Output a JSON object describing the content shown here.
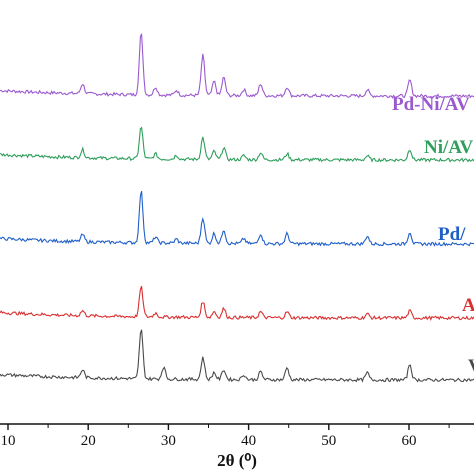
{
  "chart_data": {
    "type": "line",
    "title": "",
    "xlabel": "2θ (⁰)",
    "ylabel": "",
    "xlim": [
      8,
      68
    ],
    "x_ticks": [
      10,
      20,
      30,
      40,
      50,
      60
    ],
    "grid": false,
    "series": [
      {
        "name": "Pd-Ni/AV",
        "color": "#9b59d0",
        "label_visible": "Pd-Ni/AV",
        "baseline": 0.0,
        "peaks": [
          [
            19.3,
            10
          ],
          [
            26.6,
            62
          ],
          [
            28.4,
            8
          ],
          [
            31.0,
            5
          ],
          [
            34.3,
            40
          ],
          [
            35.7,
            14
          ],
          [
            36.9,
            18
          ],
          [
            39.4,
            6
          ],
          [
            41.5,
            12
          ],
          [
            44.8,
            9
          ],
          [
            54.8,
            6
          ],
          [
            60.1,
            16
          ]
        ]
      },
      {
        "name": "Ni/AV",
        "color": "#2e9e5b",
        "label_visible": "Ni/AV",
        "baseline": 0.0,
        "peaks": [
          [
            19.3,
            8
          ],
          [
            26.6,
            32
          ],
          [
            28.4,
            5
          ],
          [
            31.0,
            4
          ],
          [
            34.3,
            22
          ],
          [
            35.7,
            8
          ],
          [
            36.9,
            12
          ],
          [
            39.4,
            4
          ],
          [
            41.5,
            7
          ],
          [
            44.8,
            6
          ],
          [
            54.8,
            4
          ],
          [
            60.1,
            11
          ]
        ]
      },
      {
        "name": "Pd/AV",
        "color": "#1f5fc8",
        "label_visible": "Pd/",
        "baseline": 0.0,
        "peaks": [
          [
            19.3,
            7
          ],
          [
            26.6,
            52
          ],
          [
            28.4,
            6
          ],
          [
            31.0,
            4
          ],
          [
            34.3,
            26
          ],
          [
            35.7,
            10
          ],
          [
            36.9,
            14
          ],
          [
            39.4,
            5
          ],
          [
            41.5,
            10
          ],
          [
            44.8,
            10
          ],
          [
            54.8,
            8
          ],
          [
            60.1,
            12
          ]
        ]
      },
      {
        "name": "AV",
        "color": "#d93030",
        "label_visible": "A",
        "baseline": 0.0,
        "peaks": [
          [
            19.3,
            5
          ],
          [
            26.6,
            30
          ],
          [
            28.4,
            4
          ],
          [
            34.3,
            16
          ],
          [
            35.7,
            6
          ],
          [
            36.9,
            9
          ],
          [
            41.5,
            6
          ],
          [
            44.8,
            6
          ],
          [
            54.8,
            4
          ],
          [
            60.1,
            7
          ]
        ]
      },
      {
        "name": "V",
        "color": "#4a4a4a",
        "label_visible": "V",
        "baseline": 0.0,
        "peaks": [
          [
            19.3,
            8
          ],
          [
            26.6,
            50
          ],
          [
            29.4,
            12
          ],
          [
            34.3,
            22
          ],
          [
            35.7,
            7
          ],
          [
            36.9,
            10
          ],
          [
            39.4,
            5
          ],
          [
            41.5,
            8
          ],
          [
            44.8,
            12
          ],
          [
            54.8,
            7
          ],
          [
            60.1,
            16
          ]
        ]
      }
    ]
  }
}
